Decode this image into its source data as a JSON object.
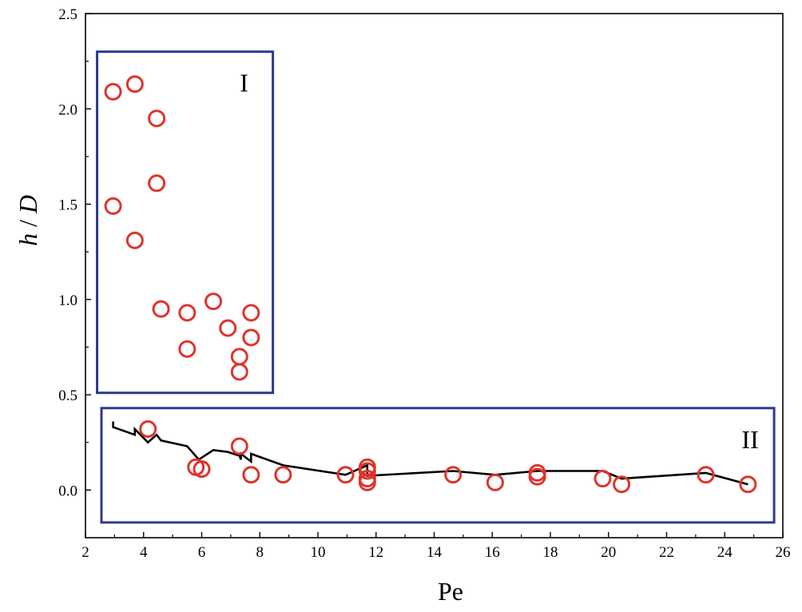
{
  "chart_data": {
    "type": "scatter",
    "title": "",
    "xlabel": "Pe",
    "ylabel_italic_h": "h",
    "ylabel_sep": " / ",
    "ylabel_italic_d": "D",
    "xlim": [
      2,
      26
    ],
    "ylim": [
      -0.25,
      2.5
    ],
    "x_ticks": [
      2,
      4,
      6,
      8,
      10,
      12,
      14,
      16,
      18,
      20,
      22,
      24,
      26
    ],
    "x_tick_labels": [
      "2",
      "4",
      "6",
      "8",
      "10",
      "12",
      "14",
      "16",
      "18",
      "20",
      "22",
      "24",
      "26"
    ],
    "y_ticks": [
      0.0,
      0.5,
      1.0,
      1.5,
      2.0,
      2.5
    ],
    "y_tick_labels": [
      "0.0",
      "0.5",
      "1.0",
      "1.5",
      "2.0",
      "2.5"
    ],
    "grid": false,
    "marker_color": "#e0332b",
    "line_color": "#000000",
    "region_color": "#2b3a8f",
    "series": [
      {
        "marker": "open-circle",
        "points": [
          {
            "x": 2.95,
            "y": 2.09
          },
          {
            "x": 3.7,
            "y": 2.13
          },
          {
            "x": 4.45,
            "y": 1.95
          },
          {
            "x": 4.45,
            "y": 1.61
          },
          {
            "x": 2.95,
            "y": 1.49
          },
          {
            "x": 3.7,
            "y": 1.31
          },
          {
            "x": 4.6,
            "y": 0.95
          },
          {
            "x": 5.5,
            "y": 0.93
          },
          {
            "x": 6.4,
            "y": 0.99
          },
          {
            "x": 7.7,
            "y": 0.93
          },
          {
            "x": 6.9,
            "y": 0.85
          },
          {
            "x": 7.7,
            "y": 0.8
          },
          {
            "x": 5.5,
            "y": 0.74
          },
          {
            "x": 7.3,
            "y": 0.7
          },
          {
            "x": 7.3,
            "y": 0.62
          },
          {
            "x": 4.15,
            "y": 0.32
          },
          {
            "x": 7.3,
            "y": 0.23
          },
          {
            "x": 5.8,
            "y": 0.12
          },
          {
            "x": 6.0,
            "y": 0.11
          },
          {
            "x": 7.7,
            "y": 0.08
          },
          {
            "x": 8.8,
            "y": 0.08
          },
          {
            "x": 10.95,
            "y": 0.08
          },
          {
            "x": 11.7,
            "y": 0.12
          },
          {
            "x": 11.7,
            "y": 0.1
          },
          {
            "x": 11.7,
            "y": 0.06
          },
          {
            "x": 11.7,
            "y": 0.04
          },
          {
            "x": 14.65,
            "y": 0.08
          },
          {
            "x": 16.1,
            "y": 0.04
          },
          {
            "x": 17.55,
            "y": 0.09
          },
          {
            "x": 17.55,
            "y": 0.07
          },
          {
            "x": 19.8,
            "y": 0.06
          },
          {
            "x": 20.45,
            "y": 0.03
          },
          {
            "x": 23.35,
            "y": 0.08
          },
          {
            "x": 24.8,
            "y": 0.03
          }
        ]
      },
      {
        "marker": "line",
        "points": [
          {
            "x": 2.95,
            "y": 0.36
          },
          {
            "x": 2.95,
            "y": 0.33
          },
          {
            "x": 3.7,
            "y": 0.29
          },
          {
            "x": 3.7,
            "y": 0.32
          },
          {
            "x": 4.15,
            "y": 0.25
          },
          {
            "x": 4.45,
            "y": 0.29
          },
          {
            "x": 4.6,
            "y": 0.26
          },
          {
            "x": 5.5,
            "y": 0.23
          },
          {
            "x": 5.9,
            "y": 0.16
          },
          {
            "x": 6.4,
            "y": 0.21
          },
          {
            "x": 6.9,
            "y": 0.2
          },
          {
            "x": 7.3,
            "y": 0.18
          },
          {
            "x": 7.35,
            "y": 0.16
          },
          {
            "x": 7.35,
            "y": 0.19
          },
          {
            "x": 7.7,
            "y": 0.15
          },
          {
            "x": 7.7,
            "y": 0.19
          },
          {
            "x": 8.8,
            "y": 0.13
          },
          {
            "x": 10.95,
            "y": 0.08
          },
          {
            "x": 11.7,
            "y": 0.13
          },
          {
            "x": 11.7,
            "y": 0.075
          },
          {
            "x": 14.65,
            "y": 0.1
          },
          {
            "x": 16.1,
            "y": 0.08
          },
          {
            "x": 17.55,
            "y": 0.1
          },
          {
            "x": 19.8,
            "y": 0.1
          },
          {
            "x": 20.45,
            "y": 0.06
          },
          {
            "x": 23.35,
            "y": 0.09
          },
          {
            "x": 24.8,
            "y": 0.03
          }
        ]
      }
    ],
    "regions": [
      {
        "label": "I",
        "x0": 2.4,
        "x1": 8.45,
        "y0": 0.51,
        "y1": 2.3
      },
      {
        "label": "II",
        "x0": 2.55,
        "x1": 25.7,
        "y0": -0.17,
        "y1": 0.43
      }
    ]
  }
}
